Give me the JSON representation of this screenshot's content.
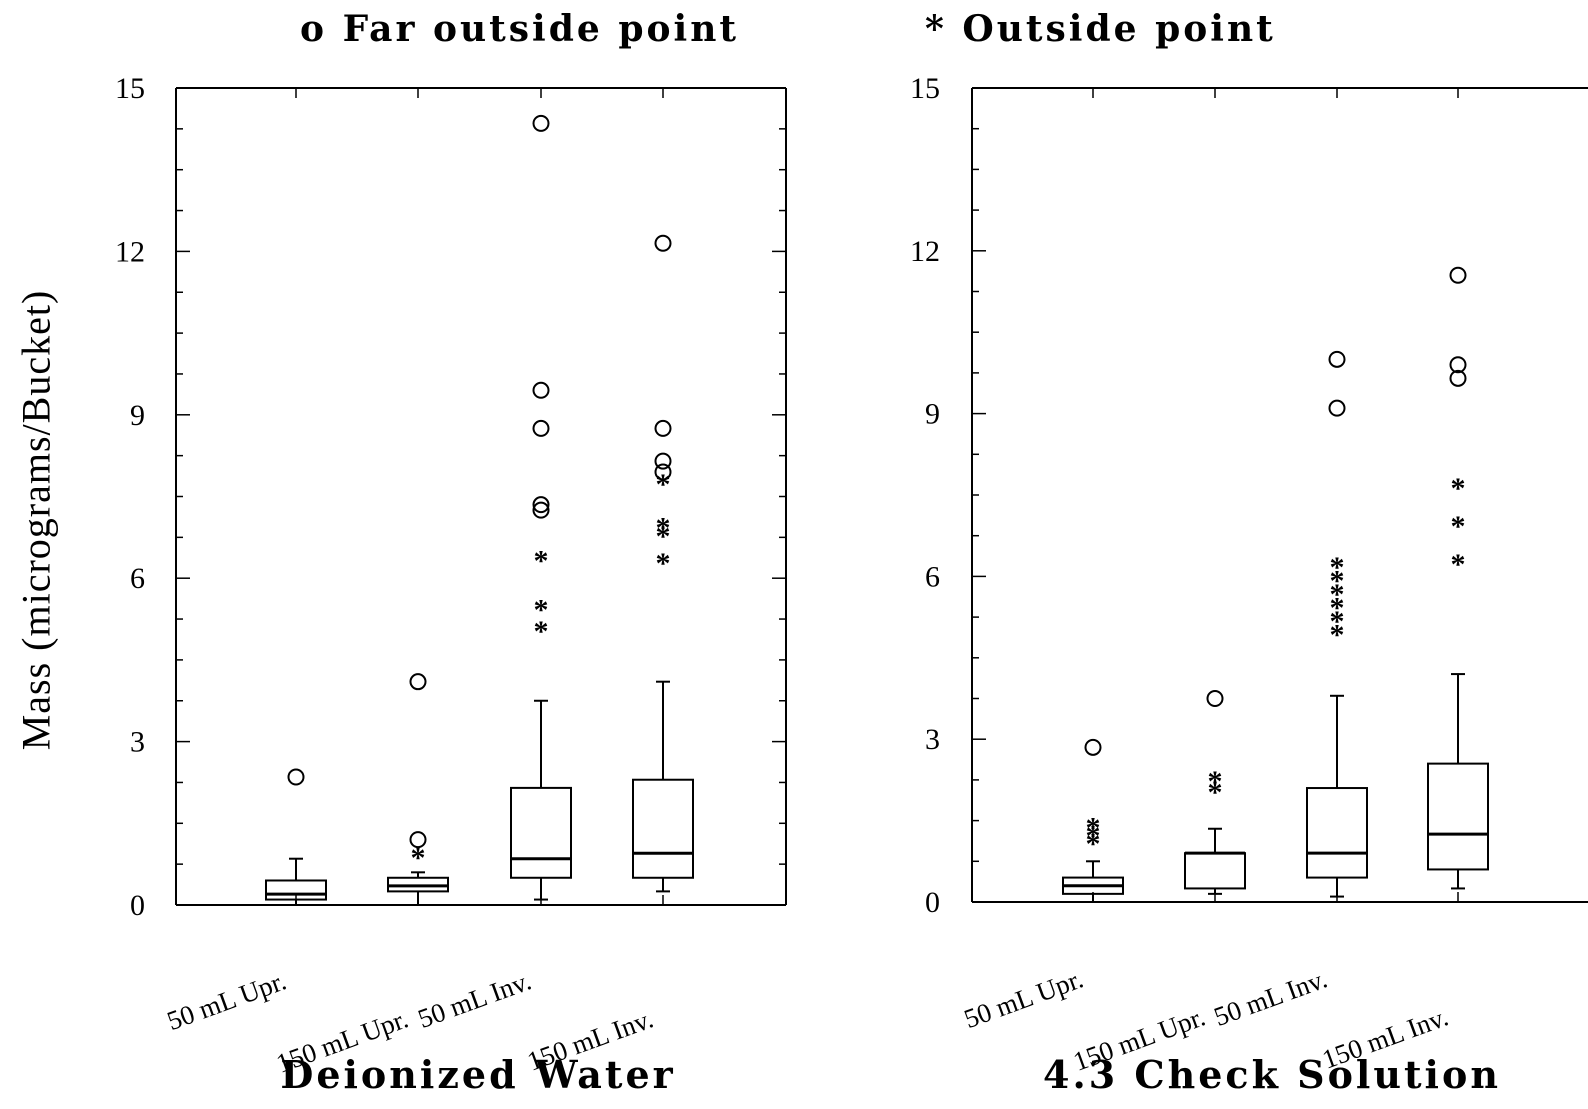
{
  "legend": {
    "far_outside_symbol": "o",
    "far_outside_label": "Far outside point",
    "outside_symbol": "*",
    "outside_label": "Outside point"
  },
  "ylabel": "Mass (micrograms/Bucket)",
  "chart_data": [
    {
      "type": "box",
      "title": "Deionized Water",
      "ylabel": "Mass (micrograms/Bucket)",
      "ylim": [
        0,
        15
      ],
      "yticks": [
        "0",
        "3",
        "6",
        "9",
        "12",
        "15"
      ],
      "categories": [
        "50 mL Upr.",
        "150 mL Upr.",
        "50 mL Inv.",
        "150 mL Inv."
      ],
      "boxes": [
        {
          "whisker_low": 0.0,
          "q1": 0.1,
          "median": 0.2,
          "q3": 0.45,
          "whisker_high": 0.85,
          "outside": [],
          "far_outside": [
            2.35
          ]
        },
        {
          "whisker_low": 0.0,
          "q1": 0.25,
          "median": 0.35,
          "q3": 0.5,
          "whisker_high": 0.6,
          "outside": [
            0.95
          ],
          "far_outside": [
            1.2,
            4.1
          ]
        },
        {
          "whisker_low": 0.1,
          "q1": 0.5,
          "median": 0.85,
          "q3": 2.15,
          "whisker_high": 3.75,
          "outside": [
            5.1,
            5.5,
            6.4
          ],
          "far_outside": [
            7.25,
            7.35,
            8.75,
            9.45,
            14.35
          ]
        },
        {
          "whisker_low": 0.25,
          "q1": 0.5,
          "median": 0.95,
          "q3": 2.3,
          "whisker_high": 4.1,
          "outside": [
            6.35,
            6.85,
            7.0,
            7.8
          ],
          "far_outside": [
            7.95,
            8.15,
            8.75,
            12.15
          ]
        }
      ]
    },
    {
      "type": "box",
      "title": "4.3 Check Solution",
      "ylabel": "Mass (micrograms/Bucket)",
      "ylim": [
        0,
        15
      ],
      "yticks": [
        "0",
        "3",
        "6",
        "9",
        "12",
        "15"
      ],
      "categories": [
        "50 mL Upr.",
        "150 mL Upr.",
        "50 mL Inv.",
        "150 mL Inv."
      ],
      "boxes": [
        {
          "whisker_low": 0.0,
          "q1": 0.15,
          "median": 0.3,
          "q3": 0.45,
          "whisker_high": 0.75,
          "outside": [
            1.15,
            1.3,
            1.45
          ],
          "far_outside": [
            2.85
          ]
        },
        {
          "whisker_low": 0.15,
          "q1": 0.25,
          "median": 0.9,
          "q3": 0.9,
          "whisker_high": 1.35,
          "outside": [
            2.1,
            2.3
          ],
          "far_outside": [
            3.75
          ]
        },
        {
          "whisker_low": 0.1,
          "q1": 0.45,
          "median": 0.9,
          "q3": 2.1,
          "whisker_high": 3.8,
          "outside": [
            5.0,
            5.25,
            5.5,
            5.75,
            6.0,
            6.25
          ],
          "far_outside": [
            9.1,
            10.0
          ]
        },
        {
          "whisker_low": 0.25,
          "q1": 0.6,
          "median": 1.25,
          "q3": 2.55,
          "whisker_high": 4.2,
          "outside": [
            6.3,
            7.0,
            7.7
          ],
          "far_outside": [
            9.65,
            9.9,
            11.55
          ]
        }
      ]
    }
  ]
}
